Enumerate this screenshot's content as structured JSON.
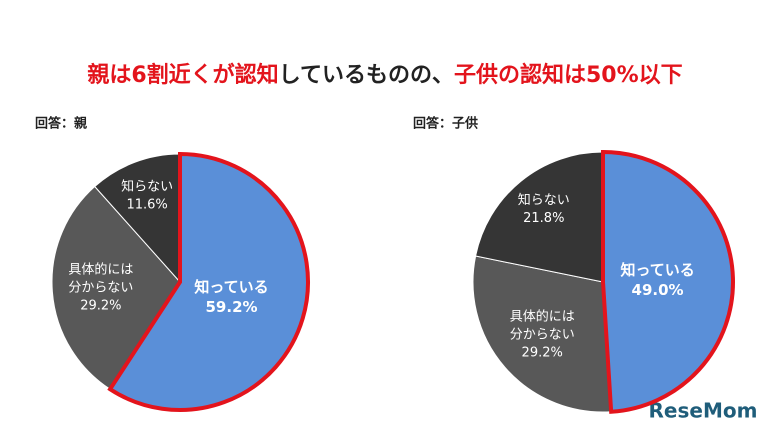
{
  "title": [
    {
      "text": "親は6割近くが認知",
      "color": "#e3141c"
    },
    {
      "text": "しているものの、",
      "color": "#222222"
    },
    {
      "text": "子供の認知は50%以下",
      "color": "#e3141c"
    }
  ],
  "chart_data": [
    {
      "type": "pie",
      "subtitle": "回答：親",
      "categories": [
        "知っている",
        [
          "具体的には",
          "分からない"
        ],
        "知らない"
      ],
      "values": [
        59.2,
        29.2,
        11.6
      ],
      "value_labels": [
        "59.2%",
        "29.2%",
        "11.6%"
      ],
      "colors": [
        "#5a8fd8",
        "#585858",
        "#353535"
      ],
      "highlight_color": "#e3141c"
    },
    {
      "type": "pie",
      "subtitle": "回答：子供",
      "categories": [
        "知っている",
        [
          "具体的には",
          "分からない"
        ],
        "知らない"
      ],
      "values": [
        49.0,
        29.2,
        21.8
      ],
      "value_labels": [
        "49.0%",
        "29.2%",
        "21.8%"
      ],
      "colors": [
        "#5a8fd8",
        "#585858",
        "#353535"
      ],
      "highlight_color": "#e3141c"
    }
  ],
  "watermark": "ReseMom"
}
